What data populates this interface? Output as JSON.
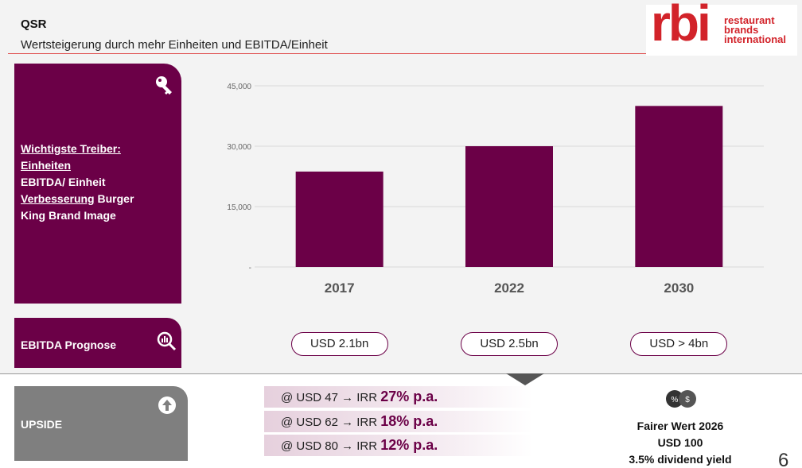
{
  "header": {
    "title": "QSR",
    "subtitle": "Wertsteigerung durch mehr Einheiten und EBITDA/Einheit"
  },
  "logo": {
    "mark": "rbi",
    "lines": [
      "restaurant",
      "brands",
      "international"
    ]
  },
  "drivers": {
    "lines": [
      [
        {
          "text": "Wichtigste Treiber:",
          "underline": true
        }
      ],
      [
        {
          "text": "Einheiten",
          "underline": true
        }
      ],
      [
        {
          "text": "EBITDA/ Einheit",
          "underline": false
        }
      ],
      [
        {
          "text": "Verbesserung",
          "underline": true
        },
        {
          "text": " Burger",
          "underline": false
        }
      ],
      [
        {
          "text": "King Brand Image",
          "underline": false
        }
      ]
    ]
  },
  "forecast": {
    "label": "EBITDA Prognose",
    "values": [
      "USD 2.1bn",
      "USD 2.5bn",
      "USD > 4bn"
    ]
  },
  "upside": {
    "label": "UPSIDE",
    "rows": [
      {
        "text": "@ USD 47 → IRR ",
        "highlight": "27% p.a."
      },
      {
        "text": "@ USD 62 → IRR ",
        "highlight": "18% p.a."
      },
      {
        "text": "@ USD 80 → IRR ",
        "highlight": "12% p.a."
      }
    ]
  },
  "fair_value": {
    "lines": [
      "Fairer Wert 2026",
      "USD 100",
      "3.5% dividend yield"
    ]
  },
  "page_number": "6",
  "chart_data": {
    "type": "bar",
    "categories": [
      "2017",
      "2022",
      "2030"
    ],
    "values": [
      23700,
      30000,
      40000
    ],
    "color": "#6b0047",
    "ylim": [
      0,
      45000
    ],
    "yticks": [
      {
        "value": 0,
        "label": "-"
      },
      {
        "value": 15000,
        "label": "15,000"
      },
      {
        "value": 30000,
        "label": "30,000"
      },
      {
        "value": 45000,
        "label": "45,000"
      }
    ],
    "grid": true
  }
}
